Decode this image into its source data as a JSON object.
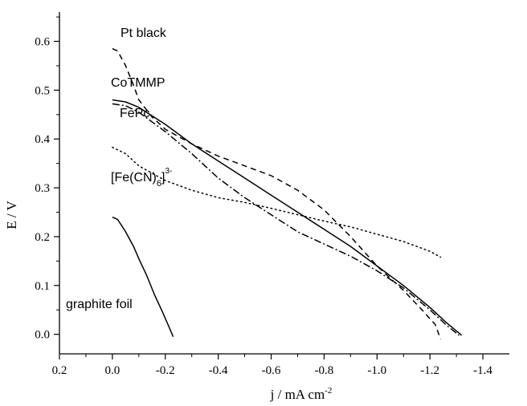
{
  "chart_data": {
    "type": "line",
    "xlabel": "j / mA cm",
    "xlabel_sup": "-2",
    "ylabel": "E / V",
    "xlim": [
      0.2,
      -1.5
    ],
    "ylim": [
      -0.04,
      0.66
    ],
    "x_reversed": true,
    "x_ticks": [
      0.2,
      0.0,
      -0.2,
      -0.4,
      -0.6,
      -0.8,
      -1.0,
      -1.2,
      -1.4
    ],
    "x_tick_labels": [
      "0.2",
      "0.0",
      "-0.2",
      "-0.4",
      "-0.6",
      "-0.8",
      "-1.0",
      "-1.2",
      "-1.4"
    ],
    "y_ticks": [
      0.0,
      0.1,
      0.2,
      0.3,
      0.4,
      0.5,
      0.6
    ],
    "y_tick_labels": [
      "0.0",
      "0.1",
      "0.2",
      "0.3",
      "0.4",
      "0.5",
      "0.6"
    ],
    "grid": false,
    "series": [
      {
        "name": "Pt black",
        "dash": "dashed",
        "points": [
          [
            0.0,
            0.585
          ],
          [
            -0.02,
            0.58
          ],
          [
            -0.05,
            0.55
          ],
          [
            -0.08,
            0.51
          ],
          [
            -0.1,
            0.48
          ],
          [
            -0.15,
            0.445
          ],
          [
            -0.2,
            0.42
          ],
          [
            -0.3,
            0.39
          ],
          [
            -0.4,
            0.365
          ],
          [
            -0.5,
            0.345
          ],
          [
            -0.6,
            0.325
          ],
          [
            -0.7,
            0.295
          ],
          [
            -0.8,
            0.255
          ],
          [
            -0.9,
            0.2
          ],
          [
            -1.0,
            0.14
          ],
          [
            -1.1,
            0.09
          ],
          [
            -1.17,
            0.05
          ],
          [
            -1.22,
            0.02
          ],
          [
            -1.24,
            -0.01
          ]
        ]
      },
      {
        "name": "CoTMMP",
        "dash": "solid",
        "points": [
          [
            0.0,
            0.48
          ],
          [
            -0.05,
            0.476
          ],
          [
            -0.1,
            0.465
          ],
          [
            -0.2,
            0.43
          ],
          [
            -0.3,
            0.39
          ],
          [
            -0.4,
            0.355
          ],
          [
            -0.5,
            0.32
          ],
          [
            -0.6,
            0.285
          ],
          [
            -0.7,
            0.25
          ],
          [
            -0.8,
            0.215
          ],
          [
            -0.9,
            0.18
          ],
          [
            -1.0,
            0.14
          ],
          [
            -1.1,
            0.1
          ],
          [
            -1.2,
            0.055
          ],
          [
            -1.26,
            0.025
          ],
          [
            -1.32,
            -0.002
          ]
        ]
      },
      {
        "name": "FePc",
        "dash": "dashdot",
        "points": [
          [
            0.0,
            0.472
          ],
          [
            -0.05,
            0.468
          ],
          [
            -0.1,
            0.455
          ],
          [
            -0.2,
            0.415
          ],
          [
            -0.3,
            0.37
          ],
          [
            -0.4,
            0.32
          ],
          [
            -0.5,
            0.28
          ],
          [
            -0.6,
            0.245
          ],
          [
            -0.7,
            0.21
          ],
          [
            -0.8,
            0.185
          ],
          [
            -0.9,
            0.16
          ],
          [
            -1.0,
            0.13
          ],
          [
            -1.1,
            0.095
          ],
          [
            -1.2,
            0.05
          ],
          [
            -1.26,
            0.02
          ],
          [
            -1.31,
            -0.002
          ]
        ]
      },
      {
        "name": "[Fe(CN)6]3-",
        "dash": "dotted",
        "points": [
          [
            0.0,
            0.383
          ],
          [
            -0.05,
            0.37
          ],
          [
            -0.1,
            0.345
          ],
          [
            -0.2,
            0.315
          ],
          [
            -0.3,
            0.295
          ],
          [
            -0.4,
            0.28
          ],
          [
            -0.5,
            0.27
          ],
          [
            -0.6,
            0.258
          ],
          [
            -0.7,
            0.245
          ],
          [
            -0.8,
            0.232
          ],
          [
            -0.9,
            0.22
          ],
          [
            -1.0,
            0.205
          ],
          [
            -1.1,
            0.19
          ],
          [
            -1.2,
            0.17
          ],
          [
            -1.24,
            0.158
          ]
        ]
      },
      {
        "name": "graphite foil",
        "dash": "solid",
        "points": [
          [
            0.0,
            0.24
          ],
          [
            -0.02,
            0.235
          ],
          [
            -0.05,
            0.21
          ],
          [
            -0.08,
            0.18
          ],
          [
            -0.1,
            0.155
          ],
          [
            -0.13,
            0.12
          ],
          [
            -0.16,
            0.08
          ],
          [
            -0.19,
            0.045
          ],
          [
            -0.21,
            0.02
          ],
          [
            -0.23,
            -0.005
          ]
        ]
      }
    ],
    "series_labels": {
      "pt": "Pt black",
      "co": "CoTMMP",
      "fepc": "FePc",
      "fecn_main": "[Fe(CN)",
      "fecn_sub": "6",
      "fecn_close": "]",
      "fecn_sup": "3-",
      "graphite": "graphite foil"
    }
  }
}
